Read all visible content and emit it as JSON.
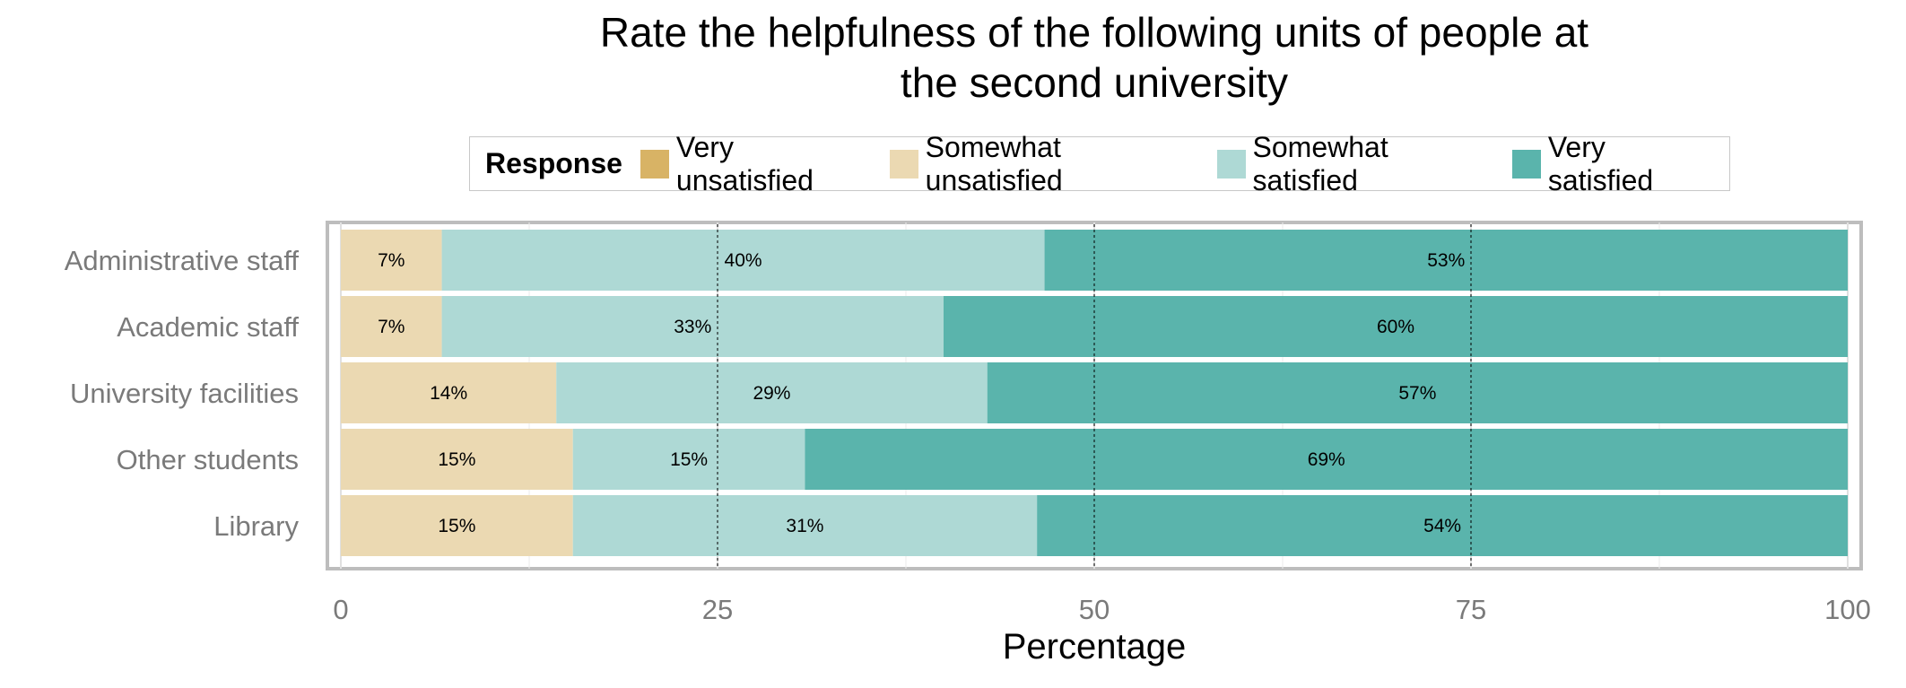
{
  "chart_data": {
    "type": "bar",
    "orientation": "horizontal",
    "stacked": true,
    "title": "Rate the helpfulness of the following units of people at the second university",
    "title_lines": [
      "Rate the helpfulness of the following units of people at",
      "the second university"
    ],
    "xlabel": "Percentage",
    "ylabel": "",
    "xlim": [
      0,
      100
    ],
    "xticks": [
      0,
      25,
      50,
      75,
      100
    ],
    "grid": true,
    "legend_title": "Response",
    "legend_position": "top",
    "categories": [
      "Administrative staff",
      "Academic staff",
      "University facilities",
      "Other students",
      "Library"
    ],
    "series": [
      {
        "name": "Very unsatisfied",
        "color": "#d8b365",
        "values": [
          0,
          0,
          0,
          0,
          0
        ],
        "labels": [
          "",
          "",
          "",
          "",
          ""
        ]
      },
      {
        "name": "Somewhat unsatisfied",
        "color": "#ebd9b2",
        "values": [
          6.7,
          6.7,
          14.3,
          15.4,
          15.4
        ],
        "labels": [
          "7%",
          "7%",
          "14%",
          "15%",
          "15%"
        ]
      },
      {
        "name": "Somewhat satisfied",
        "color": "#aed9d5",
        "values": [
          40,
          33.3,
          28.6,
          15.4,
          30.8
        ],
        "labels": [
          "40%",
          "33%",
          "29%",
          "15%",
          "31%"
        ]
      },
      {
        "name": "Very satisfied",
        "color": "#5ab4ac",
        "values": [
          53.3,
          60,
          57.1,
          69.2,
          53.8
        ],
        "labels": [
          "53%",
          "60%",
          "57%",
          "69%",
          "54%"
        ]
      }
    ]
  }
}
